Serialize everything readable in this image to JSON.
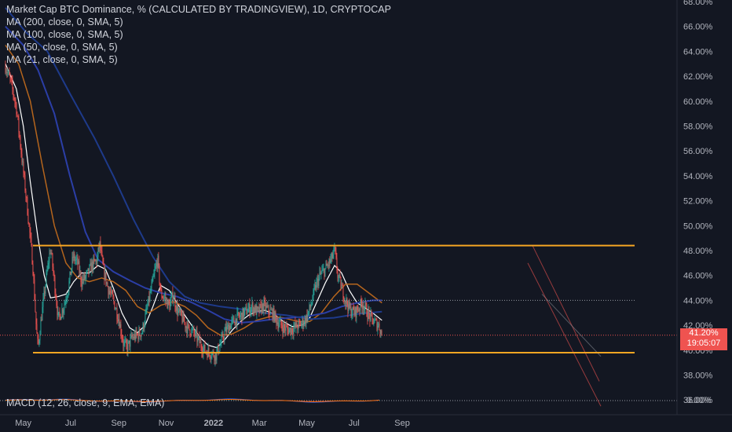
{
  "legend": {
    "title": "Market Cap BTC Dominance, % (CALCULATED BY TRADINGVIEW), 1D, CRYPTOCAP",
    "ma200": "MA (200, close, 0, SMA, 5)",
    "ma100": "MA (100, close, 0, SMA, 5)",
    "ma50": "MA (50, close, 0, SMA, 5)",
    "ma21": "MA (21, close, 0, SMA, 5)",
    "macd": "MACD (12, 26, close, 9, EMA, EMA)"
  },
  "price_tag": {
    "value": "41.20%",
    "countdown": "19:05:07"
  },
  "colors": {
    "background": "#131722",
    "up": "#26a69a",
    "down": "#ef5350",
    "ma200": "#1e3a8a",
    "ma100": "#2b3ea6",
    "ma50": "#b5651d",
    "ma21": "#ffffff",
    "levels": "#f5a623"
  },
  "chart_data": {
    "type": "line",
    "y_axis": {
      "ticks": [
        "68.00%",
        "66.00%",
        "64.00%",
        "62.00%",
        "60.00%",
        "58.00%",
        "56.00%",
        "54.00%",
        "52.00%",
        "50.00%",
        "48.00%",
        "46.00%",
        "44.00%",
        "42.00%",
        "40.00%",
        "38.00%",
        "36.00%"
      ],
      "ylim": [
        35,
        68
      ]
    },
    "x_axis": {
      "ticks": [
        "May",
        "Jul",
        "Sep",
        "Nov",
        "2022",
        "Mar",
        "May",
        "Jul",
        "Sep"
      ]
    },
    "series": [
      {
        "key": "price",
        "values": [
          [
            "2021-04-08",
            62.8
          ],
          [
            "2021-04-15",
            61.5
          ],
          [
            "2021-04-22",
            59.5
          ],
          [
            "2021-04-29",
            55.5
          ],
          [
            "2021-05-06",
            51.5
          ],
          [
            "2021-05-13",
            47.0
          ],
          [
            "2021-05-18",
            41.5
          ],
          [
            "2021-05-20",
            40.2
          ],
          [
            "2021-05-24",
            42.5
          ],
          [
            "2021-05-28",
            44.5
          ],
          [
            "2021-06-01",
            46.5
          ],
          [
            "2021-06-05",
            48.2
          ],
          [
            "2021-06-10",
            45.5
          ],
          [
            "2021-06-15",
            42.5
          ],
          [
            "2021-06-22",
            43.5
          ],
          [
            "2021-06-28",
            45.0
          ],
          [
            "2021-07-04",
            47.5
          ],
          [
            "2021-07-10",
            47.0
          ],
          [
            "2021-07-15",
            45.5
          ],
          [
            "2021-07-22",
            46.0
          ],
          [
            "2021-07-28",
            46.8
          ],
          [
            "2021-08-04",
            47.2
          ],
          [
            "2021-08-07",
            48.6
          ],
          [
            "2021-08-12",
            46.5
          ],
          [
            "2021-08-18",
            45.0
          ],
          [
            "2021-08-25",
            44.0
          ],
          [
            "2021-09-01",
            42.5
          ],
          [
            "2021-09-07",
            40.5
          ],
          [
            "2021-09-12",
            40.2
          ],
          [
            "2021-09-18",
            41.0
          ],
          [
            "2021-09-25",
            41.2
          ],
          [
            "2021-10-01",
            41.5
          ],
          [
            "2021-10-08",
            43.5
          ],
          [
            "2021-10-13",
            45.0
          ],
          [
            "2021-10-18",
            46.5
          ],
          [
            "2021-10-21",
            47.3
          ],
          [
            "2021-10-25",
            44.5
          ],
          [
            "2021-10-30",
            44.2
          ],
          [
            "2021-11-05",
            43.5
          ],
          [
            "2021-11-10",
            44.5
          ],
          [
            "2021-11-15",
            43.2
          ],
          [
            "2021-11-22",
            42.5
          ],
          [
            "2021-11-28",
            41.8
          ],
          [
            "2021-12-05",
            41.5
          ],
          [
            "2021-12-12",
            40.8
          ],
          [
            "2021-12-20",
            40.0
          ],
          [
            "2021-12-28",
            39.8
          ],
          [
            "2022-01-04",
            39.6
          ],
          [
            "2022-01-10",
            40.5
          ],
          [
            "2022-01-16",
            41.5
          ],
          [
            "2022-01-22",
            42.0
          ],
          [
            "2022-01-30",
            42.5
          ],
          [
            "2022-02-06",
            42.8
          ],
          [
            "2022-02-13",
            43.2
          ],
          [
            "2022-02-20",
            43.5
          ],
          [
            "2022-02-27",
            43.0
          ],
          [
            "2022-03-06",
            43.6
          ],
          [
            "2022-03-12",
            43.2
          ],
          [
            "2022-03-18",
            43.0
          ],
          [
            "2022-03-25",
            42.2
          ],
          [
            "2022-04-01",
            41.8
          ],
          [
            "2022-04-08",
            41.6
          ],
          [
            "2022-04-15",
            41.8
          ],
          [
            "2022-04-22",
            42.0
          ],
          [
            "2022-04-30",
            42.5
          ],
          [
            "2022-05-06",
            43.5
          ],
          [
            "2022-05-12",
            45.0
          ],
          [
            "2022-05-18",
            46.0
          ],
          [
            "2022-05-25",
            46.5
          ],
          [
            "2022-06-01",
            47.2
          ],
          [
            "2022-06-06",
            48.0
          ],
          [
            "2022-06-10",
            46.0
          ],
          [
            "2022-06-15",
            45.0
          ],
          [
            "2022-06-20",
            44.0
          ],
          [
            "2022-06-26",
            43.2
          ],
          [
            "2022-07-02",
            43.0
          ],
          [
            "2022-07-08",
            43.5
          ],
          [
            "2022-07-12",
            43.8
          ],
          [
            "2022-07-18",
            43.0
          ],
          [
            "2022-07-23",
            42.5
          ],
          [
            "2022-07-28",
            42.2
          ],
          [
            "2022-08-02",
            42.0
          ],
          [
            "2022-08-06",
            41.2
          ]
        ]
      },
      {
        "key": "ma21",
        "values": [
          [
            "2021-04-08",
            63.0
          ],
          [
            "2021-04-22",
            61.0
          ],
          [
            "2021-05-01",
            58.0
          ],
          [
            "2021-05-10",
            53.5
          ],
          [
            "2021-05-20",
            49.0
          ],
          [
            "2021-05-28",
            46.0
          ],
          [
            "2021-06-05",
            44.2
          ],
          [
            "2021-06-15",
            44.3
          ],
          [
            "2021-06-25",
            44.5
          ],
          [
            "2021-07-05",
            45.5
          ],
          [
            "2021-07-15",
            46.2
          ],
          [
            "2021-07-25",
            46.2
          ],
          [
            "2021-08-05",
            46.8
          ],
          [
            "2021-08-15",
            46.5
          ],
          [
            "2021-08-25",
            45.0
          ],
          [
            "2021-09-05",
            43.0
          ],
          [
            "2021-09-15",
            41.8
          ],
          [
            "2021-09-25",
            41.4
          ],
          [
            "2021-10-05",
            42.0
          ],
          [
            "2021-10-15",
            43.5
          ],
          [
            "2021-10-25",
            45.2
          ],
          [
            "2021-11-05",
            44.8
          ],
          [
            "2021-11-15",
            43.8
          ],
          [
            "2021-11-25",
            42.8
          ],
          [
            "2021-12-05",
            41.9
          ],
          [
            "2021-12-15",
            41.0
          ],
          [
            "2021-12-25",
            40.4
          ],
          [
            "2022-01-05",
            40.2
          ],
          [
            "2022-01-15",
            40.8
          ],
          [
            "2022-01-25",
            41.6
          ],
          [
            "2022-02-05",
            42.3
          ],
          [
            "2022-02-15",
            42.8
          ],
          [
            "2022-02-25",
            43.1
          ],
          [
            "2022-03-08",
            43.2
          ],
          [
            "2022-03-20",
            42.9
          ],
          [
            "2022-04-01",
            42.3
          ],
          [
            "2022-04-12",
            41.9
          ],
          [
            "2022-04-25",
            42.0
          ],
          [
            "2022-05-05",
            42.6
          ],
          [
            "2022-05-15",
            44.0
          ],
          [
            "2022-05-25",
            45.4
          ],
          [
            "2022-06-06",
            46.8
          ],
          [
            "2022-06-15",
            46.2
          ],
          [
            "2022-06-25",
            44.8
          ],
          [
            "2022-07-05",
            43.8
          ],
          [
            "2022-07-15",
            43.4
          ],
          [
            "2022-07-25",
            43.0
          ],
          [
            "2022-08-06",
            42.4
          ]
        ]
      },
      {
        "key": "ma50",
        "values": [
          [
            "2021-04-08",
            64.5
          ],
          [
            "2021-04-25",
            63.0
          ],
          [
            "2021-05-10",
            60.0
          ],
          [
            "2021-05-25",
            55.0
          ],
          [
            "2021-06-10",
            50.0
          ],
          [
            "2021-06-25",
            47.0
          ],
          [
            "2021-07-10",
            45.8
          ],
          [
            "2021-07-25",
            45.5
          ],
          [
            "2021-08-10",
            45.8
          ],
          [
            "2021-08-25",
            45.5
          ],
          [
            "2021-09-10",
            44.8
          ],
          [
            "2021-09-25",
            43.5
          ],
          [
            "2021-10-10",
            43.0
          ],
          [
            "2021-10-25",
            43.6
          ],
          [
            "2021-11-10",
            43.9
          ],
          [
            "2021-11-25",
            43.5
          ],
          [
            "2021-12-10",
            42.8
          ],
          [
            "2021-12-25",
            41.8
          ],
          [
            "2022-01-10",
            41.2
          ],
          [
            "2022-01-25",
            41.3
          ],
          [
            "2022-02-10",
            41.8
          ],
          [
            "2022-02-25",
            42.4
          ],
          [
            "2022-03-15",
            42.7
          ],
          [
            "2022-04-01",
            42.6
          ],
          [
            "2022-04-20",
            42.3
          ],
          [
            "2022-05-05",
            42.3
          ],
          [
            "2022-05-20",
            43.0
          ],
          [
            "2022-06-05",
            44.3
          ],
          [
            "2022-06-20",
            45.3
          ],
          [
            "2022-07-05",
            45.3
          ],
          [
            "2022-07-20",
            44.6
          ],
          [
            "2022-08-06",
            43.8
          ]
        ]
      },
      {
        "key": "ma100",
        "values": [
          [
            "2021-04-08",
            66.0
          ],
          [
            "2021-05-01",
            64.5
          ],
          [
            "2021-05-20",
            62.5
          ],
          [
            "2021-06-10",
            59.0
          ],
          [
            "2021-06-30",
            54.0
          ],
          [
            "2021-07-20",
            49.5
          ],
          [
            "2021-08-05",
            47.3
          ],
          [
            "2021-08-25",
            46.3
          ],
          [
            "2021-09-15",
            45.6
          ],
          [
            "2021-10-05",
            45.0
          ],
          [
            "2021-10-25",
            44.6
          ],
          [
            "2021-11-15",
            44.3
          ],
          [
            "2021-12-05",
            43.8
          ],
          [
            "2021-12-25",
            43.2
          ],
          [
            "2022-01-15",
            42.5
          ],
          [
            "2022-02-05",
            42.2
          ],
          [
            "2022-02-25",
            42.3
          ],
          [
            "2022-03-20",
            42.5
          ],
          [
            "2022-04-10",
            42.6
          ],
          [
            "2022-05-01",
            42.7
          ],
          [
            "2022-05-25",
            43.0
          ],
          [
            "2022-06-15",
            43.5
          ],
          [
            "2022-07-05",
            43.8
          ],
          [
            "2022-07-25",
            44.0
          ],
          [
            "2022-08-06",
            44.0
          ]
        ]
      },
      {
        "key": "ma200",
        "values": [
          [
            "2021-04-08",
            67.5
          ],
          [
            "2021-05-05",
            65.5
          ],
          [
            "2021-06-01",
            64.0
          ],
          [
            "2021-07-01",
            60.5
          ],
          [
            "2021-08-01",
            57.0
          ],
          [
            "2021-08-25",
            54.0
          ],
          [
            "2021-09-20",
            50.5
          ],
          [
            "2021-10-15",
            47.5
          ],
          [
            "2021-11-05",
            45.5
          ],
          [
            "2021-11-25",
            44.3
          ],
          [
            "2021-12-15",
            43.8
          ],
          [
            "2022-01-10",
            43.5
          ],
          [
            "2022-02-05",
            43.3
          ],
          [
            "2022-03-05",
            43.0
          ],
          [
            "2022-04-05",
            42.8
          ],
          [
            "2022-05-05",
            42.5
          ],
          [
            "2022-06-05",
            42.6
          ],
          [
            "2022-07-05",
            42.9
          ],
          [
            "2022-08-06",
            43.1
          ]
        ]
      }
    ],
    "levels": [
      48.4,
      39.8
    ],
    "dotted_levels": [
      44.0,
      41.2
    ]
  }
}
